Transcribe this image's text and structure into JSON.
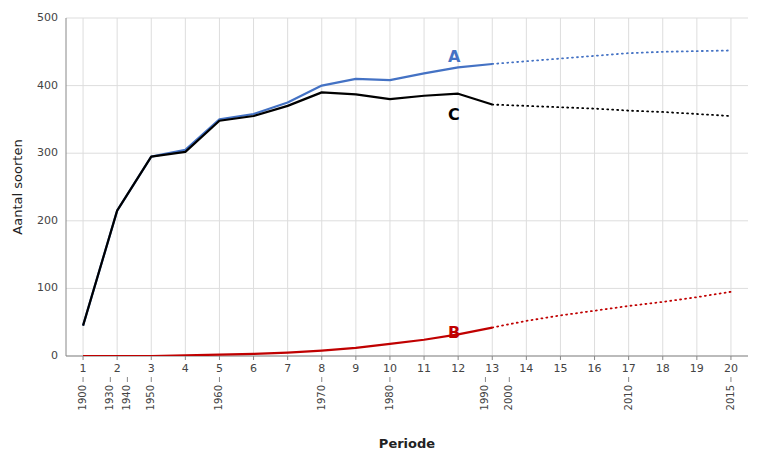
{
  "chart_data": {
    "type": "line",
    "x_label": "Periode",
    "y_label": "Aantal soorten",
    "xlim": [
      0.5,
      20.5
    ],
    "ylim": [
      0,
      500
    ],
    "xticks": [
      1,
      2,
      3,
      4,
      5,
      6,
      7,
      8,
      9,
      10,
      11,
      12,
      13,
      14,
      15,
      16,
      17,
      18,
      19,
      20
    ],
    "yticks": [
      0,
      100,
      200,
      300,
      400,
      500
    ],
    "grid": true,
    "series": [
      {
        "color": "#4472C4",
        "line_style": "solid",
        "x": [
          1,
          2,
          3,
          4,
          5,
          6,
          7,
          8,
          9,
          10,
          11,
          12,
          13
        ],
        "values": [
          45,
          215,
          295,
          305,
          350,
          358,
          375,
          400,
          410,
          408,
          418,
          427,
          432
        ]
      },
      {
        "color": "#4472C4",
        "line_style": "dotted",
        "x": [
          13,
          14,
          15,
          16,
          17,
          18,
          19,
          20
        ],
        "values": [
          432,
          436,
          440,
          444,
          448,
          450,
          451,
          452
        ]
      },
      {
        "color": "#C00000",
        "line_style": "solid",
        "x": [
          1,
          2,
          3,
          4,
          5,
          6,
          7,
          8,
          9,
          10,
          11,
          12,
          13
        ],
        "values": [
          0,
          0,
          0,
          1,
          2,
          3,
          5,
          8,
          12,
          18,
          24,
          32,
          42
        ]
      },
      {
        "color": "#C00000",
        "line_style": "dotted",
        "x": [
          13,
          14,
          15,
          16,
          17,
          18,
          19,
          20
        ],
        "values": [
          42,
          52,
          60,
          67,
          74,
          80,
          87,
          95
        ]
      },
      {
        "color": "#000000",
        "line_style": "solid",
        "x": [
          1,
          2,
          3,
          4,
          5,
          6,
          7,
          8,
          9,
          10,
          11,
          12,
          13
        ],
        "values": [
          45,
          215,
          295,
          302,
          348,
          355,
          370,
          390,
          387,
          380,
          385,
          388,
          372
        ]
      },
      {
        "color": "#000000",
        "line_style": "dotted",
        "x": [
          13,
          14,
          15,
          16,
          17,
          18,
          19,
          20
        ],
        "values": [
          372,
          370,
          368,
          366,
          363,
          361,
          358,
          355
        ]
      }
    ],
    "annotations": [
      {
        "text": "A",
        "x": 11.7,
        "y": 430,
        "color": "#4472C4"
      },
      {
        "text": "C",
        "x": 11.7,
        "y": 345,
        "color": "#000000"
      },
      {
        "text": "B",
        "x": 11.7,
        "y": 22,
        "color": "#C00000"
      },
      {
        "text": "1900",
        "x": 1
      },
      {
        "text": "1930",
        "x": 1.8
      },
      {
        "text": "1940",
        "x": 2.3
      },
      {
        "text": "1950",
        "x": 3
      },
      {
        "text": "1960",
        "x": 5
      },
      {
        "text": "1970",
        "x": 8
      },
      {
        "text": "1980",
        "x": 10
      },
      {
        "text": "1990",
        "x": 12.8
      },
      {
        "text": "2000",
        "x": 13.5
      },
      {
        "text": "2010",
        "x": 17
      },
      {
        "text": "2015",
        "x": 20
      }
    ]
  }
}
